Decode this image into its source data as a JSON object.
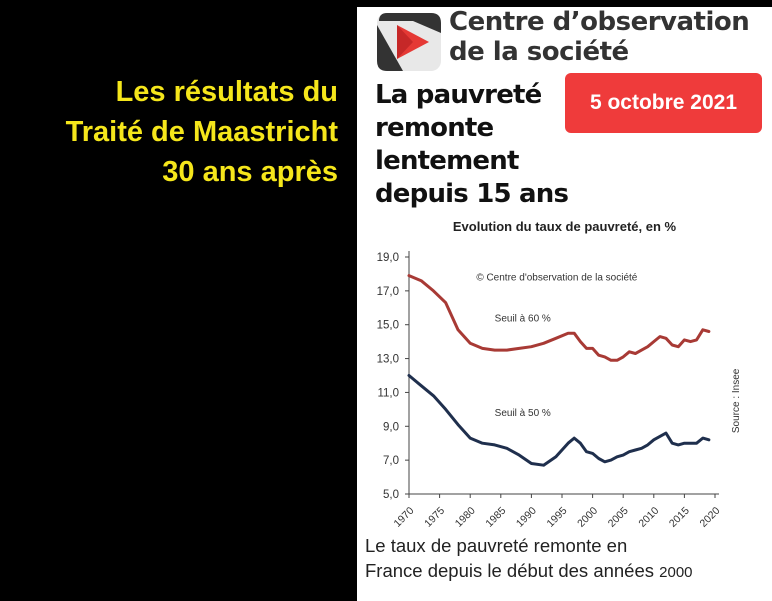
{
  "left_caption": [
    "Les résultats du",
    "Traité de Maastricht",
    "30 ans après"
  ],
  "brand": {
    "line1": "Centre d’observation",
    "line2": "de la société"
  },
  "headline": [
    "La pauvreté",
    "remonte",
    "lentement",
    "depuis 15 ans"
  ],
  "date_badge": "5 octobre 2021",
  "footer": {
    "line1": "Le taux de pauvreté remonte en",
    "line2a": "France depuis le début des années ",
    "line2b": "2000"
  },
  "colors": {
    "seuil60": "#a83a35",
    "seuil50": "#1f2f4d",
    "badge": "#ef3b3b",
    "caption": "#f5e61b"
  },
  "chart_data": {
    "type": "line",
    "title": "Evolution du taux de pauvreté, en %",
    "copyright": "© Centre d'observation de la  société",
    "source": "Source : Insee",
    "ylim": [
      5,
      19
    ],
    "xlim": [
      1970,
      2020
    ],
    "yticks": [
      "19,0",
      "17,0",
      "15,0",
      "13,0",
      "11,0",
      "9,0",
      "7,0",
      "5,0"
    ],
    "ytick_values": [
      19,
      17,
      15,
      13,
      11,
      9,
      7,
      5
    ],
    "xticks": [
      "1970",
      "1975",
      "1980",
      "1985",
      "1990",
      "1995",
      "2000",
      "2005",
      "2010",
      "2015",
      "2020"
    ],
    "xtick_values": [
      1970,
      1975,
      1980,
      1985,
      1990,
      1995,
      2000,
      2005,
      2010,
      2015,
      2020
    ],
    "series": [
      {
        "name": "Seuil à 60 %",
        "color": "#a83a35",
        "x": [
          1970,
          1972,
          1974,
          1976,
          1978,
          1980,
          1982,
          1984,
          1986,
          1988,
          1990,
          1992,
          1994,
          1996,
          1997,
          1998,
          1999,
          2000,
          2001,
          2002,
          2003,
          2004,
          2005,
          2006,
          2007,
          2008,
          2009,
          2010,
          2011,
          2012,
          2013,
          2014,
          2015,
          2016,
          2017,
          2018,
          2019
        ],
        "values": [
          17.9,
          17.6,
          17.0,
          16.3,
          14.7,
          13.9,
          13.6,
          13.5,
          13.5,
          13.6,
          13.7,
          13.9,
          14.2,
          14.5,
          14.5,
          14.0,
          13.6,
          13.6,
          13.2,
          13.1,
          12.9,
          12.9,
          13.1,
          13.4,
          13.3,
          13.5,
          13.7,
          14.0,
          14.3,
          14.2,
          13.8,
          13.7,
          14.1,
          14.0,
          14.1,
          14.7,
          14.6
        ]
      },
      {
        "name": "Seuil à 50 %",
        "color": "#1f2f4d",
        "x": [
          1970,
          1972,
          1974,
          1976,
          1978,
          1980,
          1982,
          1984,
          1986,
          1988,
          1990,
          1992,
          1994,
          1996,
          1997,
          1998,
          1999,
          2000,
          2001,
          2002,
          2003,
          2004,
          2005,
          2006,
          2007,
          2008,
          2009,
          2010,
          2011,
          2012,
          2013,
          2014,
          2015,
          2016,
          2017,
          2018,
          2019
        ],
        "values": [
          12.0,
          11.4,
          10.8,
          10.0,
          9.1,
          8.3,
          8.0,
          7.9,
          7.7,
          7.3,
          6.8,
          6.7,
          7.2,
          8.0,
          8.3,
          8.0,
          7.5,
          7.4,
          7.1,
          6.9,
          7.0,
          7.2,
          7.3,
          7.5,
          7.6,
          7.7,
          7.9,
          8.2,
          8.4,
          8.6,
          8.0,
          7.9,
          8.0,
          8.0,
          8.0,
          8.3,
          8.2
        ]
      }
    ]
  }
}
